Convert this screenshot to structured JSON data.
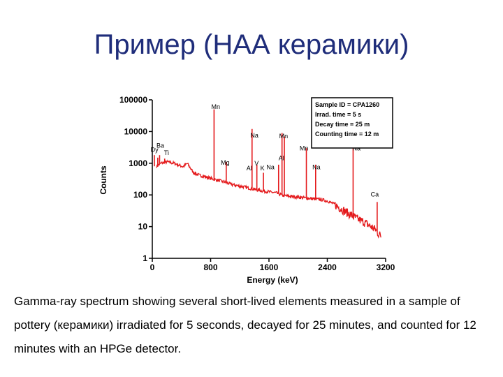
{
  "slide": {
    "title": "Пример (НАА керамики)",
    "caption": "Gamma-ray spectrum showing several short-lived elements measured in a sample of pottery (керамики) irradiated for 5 seconds, decayed for 25 minutes, and counted for 12 minutes with an HPGe detector."
  },
  "chart_data": {
    "type": "line",
    "xlabel": "Energy (keV)",
    "ylabel": "Counts",
    "xlim": [
      0,
      3200
    ],
    "ylim": [
      1,
      100000
    ],
    "yscale": "log",
    "xticks": [
      0,
      800,
      1600,
      2400,
      3200
    ],
    "xtick_labels": [
      "0",
      "800",
      "1600",
      "2400",
      "3200"
    ],
    "yticks": [
      1,
      10,
      100,
      1000,
      10000,
      100000
    ],
    "ytick_labels": [
      "1",
      "10",
      "100",
      "1000",
      "10000",
      "100000"
    ],
    "grid": false,
    "series_color": "#e41a1c",
    "continuum": [
      [
        60,
        800
      ],
      [
        120,
        1000
      ],
      [
        200,
        1100
      ],
      [
        300,
        1000
      ],
      [
        420,
        780
      ],
      [
        480,
        980
      ],
      [
        560,
        520
      ],
      [
        640,
        420
      ],
      [
        720,
        380
      ],
      [
        800,
        330
      ],
      [
        900,
        290
      ],
      [
        1000,
        250
      ],
      [
        1100,
        210
      ],
      [
        1200,
        190
      ],
      [
        1300,
        170
      ],
      [
        1400,
        150
      ],
      [
        1500,
        135
      ],
      [
        1600,
        125
      ],
      [
        1700,
        115
      ],
      [
        1800,
        95
      ],
      [
        1900,
        90
      ],
      [
        2000,
        85
      ],
      [
        2100,
        80
      ],
      [
        2200,
        75
      ],
      [
        2300,
        72
      ],
      [
        2400,
        65
      ],
      [
        2500,
        50
      ],
      [
        2600,
        35
      ],
      [
        2700,
        25
      ],
      [
        2800,
        18
      ],
      [
        2900,
        14
      ],
      [
        3000,
        10
      ],
      [
        3060,
        8
      ],
      [
        3100,
        6
      ],
      [
        3140,
        5
      ]
    ],
    "peaks": [
      {
        "x": 28,
        "y": 1800
      },
      {
        "x": 75,
        "y": 1500
      },
      {
        "x": 100,
        "y": 1800
      },
      {
        "x": 170,
        "y": 1400
      },
      {
        "x": 847,
        "y": 50000
      },
      {
        "x": 1014,
        "y": 1100
      },
      {
        "x": 1368,
        "y": 12000
      },
      {
        "x": 1434,
        "y": 900
      },
      {
        "x": 1524,
        "y": 500
      },
      {
        "x": 1732,
        "y": 900
      },
      {
        "x": 1779,
        "y": 9000
      },
      {
        "x": 1811,
        "y": 7000
      },
      {
        "x": 2113,
        "y": 3000
      },
      {
        "x": 2240,
        "y": 900
      },
      {
        "x": 2754,
        "y": 6000
      },
      {
        "x": 3084,
        "y": 60
      }
    ],
    "peak_labels": [
      {
        "text": "Mn",
        "x": 870,
        "y": 52000
      },
      {
        "text": "Na",
        "x": 1400,
        "y": 6400
      },
      {
        "text": "Mn",
        "x": 1800,
        "y": 6200
      },
      {
        "text": "Mn",
        "x": 2080,
        "y": 2550
      },
      {
        "text": "Na",
        "x": 2800,
        "y": 2550
      },
      {
        "text": "Dy",
        "x": 30,
        "y": 2300
      },
      {
        "text": "Ba",
        "x": 110,
        "y": 3100
      },
      {
        "text": "Ti",
        "x": 195,
        "y": 1800
      },
      {
        "text": "Mg",
        "x": 1000,
        "y": 900
      },
      {
        "text": "Al",
        "x": 1330,
        "y": 600
      },
      {
        "text": "V",
        "x": 1430,
        "y": 850
      },
      {
        "text": "K",
        "x": 1510,
        "y": 600
      },
      {
        "text": "Na",
        "x": 1620,
        "y": 650
      },
      {
        "text": "Al",
        "x": 1770,
        "y": 1250
      },
      {
        "text": "Na",
        "x": 2250,
        "y": 650
      },
      {
        "text": "Ca",
        "x": 3050,
        "y": 90
      }
    ],
    "legend": {
      "position": "top-right",
      "lines": [
        "Sample ID = CPA1260",
        "Irrad. time      =  5 s",
        "Decay time     = 25 m",
        "Counting time = 12 m"
      ]
    }
  }
}
